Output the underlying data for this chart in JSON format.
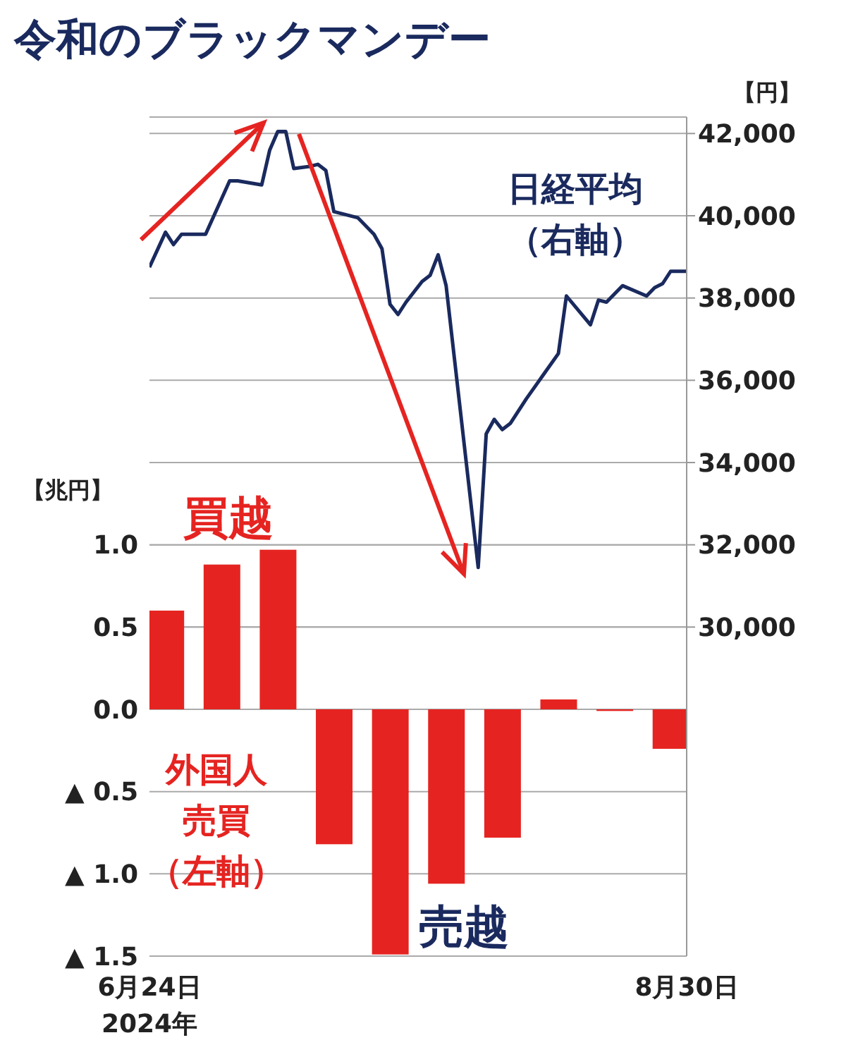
{
  "chart_data": {
    "type": "bar",
    "title": "令和のブラックマンデー",
    "ylabel": "【兆円】",
    "y2label": "【円】",
    "annotations": [
      "買越",
      "売越"
    ],
    "x": [
      "2024-06-26",
      "2024-07-03",
      "2024-07-10",
      "2024-07-17",
      "2024-07-24",
      "2024-07-31",
      "2024-08-07",
      "2024-08-14",
      "2024-08-21",
      "2024-08-28"
    ],
    "series": [
      {
        "name": "外国人売買（左軸）",
        "color": "#e52421",
        "values": [
          0.6,
          0.88,
          0.97,
          -0.82,
          -1.49,
          -1.06,
          -0.78,
          0.06,
          -0.01,
          -0.24
        ]
      },
      {
        "type": "line",
        "axis": "y2",
        "name": "日経平均（右軸）",
        "color": "#1a2a5e",
        "x": [
          "2024-06-24",
          "2024-06-26",
          "2024-06-27",
          "2024-06-28",
          "2024-07-01",
          "2024-07-04",
          "2024-07-05",
          "2024-07-08",
          "2024-07-09",
          "2024-07-10",
          "2024-07-11",
          "2024-07-12",
          "2024-07-14",
          "2024-07-15",
          "2024-07-16",
          "2024-07-17",
          "2024-07-20",
          "2024-07-22",
          "2024-07-23",
          "2024-07-24",
          "2024-07-25",
          "2024-07-26",
          "2024-07-28",
          "2024-07-29",
          "2024-07-30",
          "2024-07-31",
          "2024-08-04",
          "2024-08-05",
          "2024-08-06",
          "2024-08-07",
          "2024-08-08",
          "2024-08-10",
          "2024-08-12",
          "2024-08-14",
          "2024-08-15",
          "2024-08-18",
          "2024-08-19",
          "2024-08-20",
          "2024-08-22",
          "2024-08-25",
          "2024-08-26",
          "2024-08-27",
          "2024-08-28",
          "2024-08-30"
        ],
        "values": [
          38750,
          39600,
          39300,
          39550,
          39550,
          40850,
          40850,
          40750,
          41600,
          42050,
          42050,
          41150,
          41200,
          41250,
          41100,
          40100,
          39950,
          39550,
          39200,
          37850,
          37600,
          37900,
          38400,
          38550,
          39050,
          38300,
          31450,
          34700,
          35050,
          34800,
          34950,
          35550,
          36100,
          36650,
          38050,
          37350,
          37950,
          37900,
          38300,
          38050,
          38250,
          38350,
          38650,
          38650
        ]
      }
    ],
    "xlim": [
      "2024-06-24",
      "2024-08-30"
    ],
    "xticks": [
      {
        "value": "2024-06-24",
        "label": "6月24日\n2024年"
      },
      {
        "value": "2024-08-30",
        "label": "8月30日"
      }
    ],
    "ylim": [
      -1.5,
      3.6
    ],
    "yticks": [
      {
        "value": -1.5,
        "label": "▲ 1.5"
      },
      {
        "value": -1,
        "label": "▲ 1.0"
      },
      {
        "value": -0.5,
        "label": "▲ 0.5"
      },
      {
        "value": 0,
        "label": "0.0"
      },
      {
        "value": 0.5,
        "label": "0.5"
      },
      {
        "value": 1,
        "label": "1.0"
      }
    ],
    "y2lim": [
      22000,
      42400
    ],
    "y2ticks": [
      {
        "value": 30000,
        "label": "30,000"
      },
      {
        "value": 32000,
        "label": "32,000"
      },
      {
        "value": 34000,
        "label": "34,000"
      },
      {
        "value": 36000,
        "label": "36,000"
      },
      {
        "value": 38000,
        "label": "38,000"
      },
      {
        "value": 40000,
        "label": "40,000"
      },
      {
        "value": 42000,
        "label": "42,000"
      }
    ],
    "grid": "y",
    "marker": "none",
    "line_style": "solid"
  }
}
